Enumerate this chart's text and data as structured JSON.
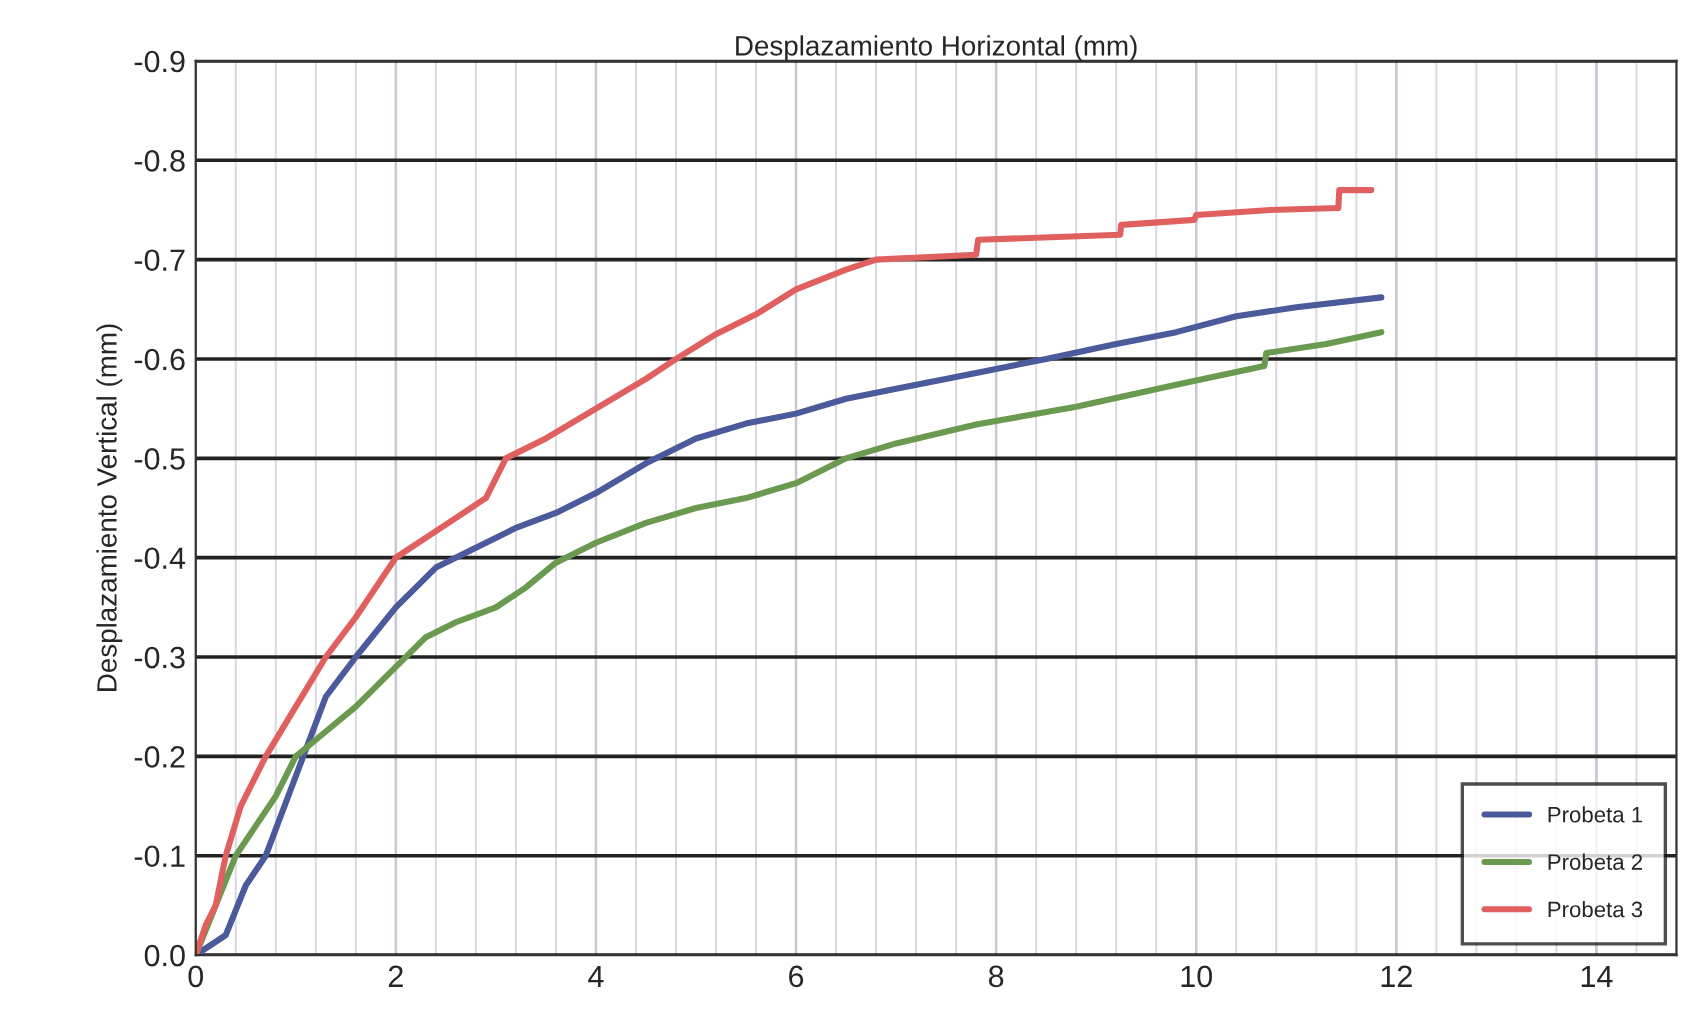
{
  "chart_data": {
    "type": "line",
    "title": "Desplazamiento Horizontal (mm)",
    "ylabel": "Desplazamiento Vertical (mm)",
    "xlim": [
      0,
      14.8
    ],
    "xticks": [
      0,
      2,
      4,
      6,
      8,
      10,
      12,
      14
    ],
    "ylim": [
      0,
      -0.9
    ],
    "yticks": [
      {
        "value": 0,
        "label": "0.0"
      },
      {
        "value": -0.1,
        "label": "-0.1"
      },
      {
        "value": -0.2,
        "label": "-0.2"
      },
      {
        "value": -0.3,
        "label": "-0.3"
      },
      {
        "value": -0.4,
        "label": "-0.4"
      },
      {
        "value": -0.5,
        "label": "-0.5"
      },
      {
        "value": -0.6,
        "label": "-0.6"
      },
      {
        "value": -0.7,
        "label": "-0.7"
      },
      {
        "value": -0.8,
        "label": "-0.8"
      },
      {
        "value": -0.9,
        "label": "-0.9"
      }
    ],
    "grid": true,
    "legend": "bottom right",
    "line_style": "solid",
    "series": [
      {
        "name": "Probeta 1",
        "color": "#4a5a9a",
        "x": [
          0,
          0.3,
          0.5,
          0.7,
          1.0,
          1.3,
          1.6,
          2.0,
          2.4,
          2.8,
          3.2,
          3.6,
          4.0,
          4.5,
          5.0,
          5.5,
          6.0,
          6.5,
          7.0,
          7.8,
          8.5,
          9.2,
          9.8,
          10.4,
          11.0,
          11.85
        ],
        "values": [
          0,
          -0.02,
          -0.07,
          -0.1,
          -0.18,
          -0.26,
          -0.3,
          -0.35,
          -0.39,
          -0.41,
          -0.43,
          -0.445,
          -0.465,
          -0.495,
          -0.52,
          -0.535,
          -0.545,
          -0.56,
          -0.57,
          -0.586,
          -0.6,
          -0.615,
          -0.627,
          -0.643,
          -0.652,
          -0.662
        ]
      },
      {
        "name": "Probeta 2",
        "color": "#6a9a50",
        "x": [
          0,
          0.2,
          0.4,
          0.6,
          0.8,
          1.0,
          1.3,
          1.6,
          2.0,
          2.3,
          2.6,
          3.0,
          3.3,
          3.6,
          4.0,
          4.5,
          5.0,
          5.5,
          6.0,
          6.5,
          7.0,
          7.8,
          8.8,
          9.8,
          10.68,
          10.7,
          11.3,
          11.85
        ],
        "values": [
          0,
          -0.05,
          -0.1,
          -0.13,
          -0.16,
          -0.2,
          -0.225,
          -0.25,
          -0.29,
          -0.32,
          -0.335,
          -0.35,
          -0.37,
          -0.395,
          -0.415,
          -0.435,
          -0.45,
          -0.46,
          -0.475,
          -0.5,
          -0.515,
          -0.534,
          -0.552,
          -0.574,
          -0.593,
          -0.606,
          -0.615,
          -0.627
        ]
      },
      {
        "name": "Probeta 3",
        "color": "#e06060",
        "x": [
          0,
          0.1,
          0.2,
          0.3,
          0.45,
          0.7,
          1.0,
          1.3,
          1.6,
          2.0,
          2.3,
          2.6,
          2.9,
          3.1,
          3.5,
          4.0,
          4.5,
          4.8,
          5.2,
          5.6,
          6.0,
          6.5,
          6.8,
          7.8,
          7.82,
          9.24,
          9.25,
          9.98,
          10.0,
          10.74,
          11.42,
          11.43,
          11.75
        ],
        "values": [
          0,
          -0.03,
          -0.05,
          -0.1,
          -0.15,
          -0.2,
          -0.25,
          -0.3,
          -0.34,
          -0.4,
          -0.42,
          -0.44,
          -0.46,
          -0.5,
          -0.52,
          -0.55,
          -0.58,
          -0.6,
          -0.625,
          -0.645,
          -0.67,
          -0.69,
          -0.7,
          -0.705,
          -0.72,
          -0.725,
          -0.735,
          -0.74,
          -0.745,
          -0.75,
          -0.752,
          -0.77,
          -0.77
        ]
      }
    ]
  }
}
